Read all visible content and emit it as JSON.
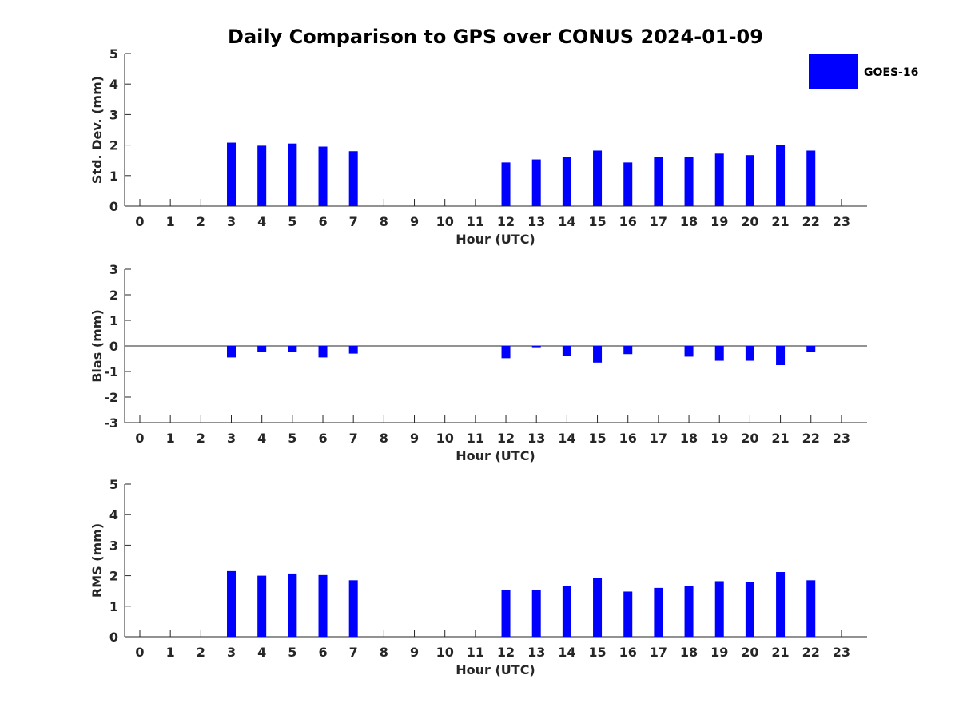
{
  "title": "Daily Comparison to GPS over CONUS 2024-01-09",
  "bar_color": "#0000ff",
  "chart_data": [
    {
      "type": "bar",
      "xlabel": "Hour (UTC)",
      "ylabel": "Std. Dev. (mm)",
      "ylim": [
        0,
        5
      ],
      "yticks": [
        0,
        1,
        2,
        3,
        4,
        5
      ],
      "categories": [
        "0",
        "1",
        "2",
        "3",
        "4",
        "5",
        "6",
        "7",
        "8",
        "9",
        "10",
        "11",
        "12",
        "13",
        "14",
        "15",
        "16",
        "17",
        "18",
        "19",
        "20",
        "21",
        "22",
        "23"
      ],
      "series": [
        {
          "name": "GOES-16",
          "values": [
            null,
            null,
            null,
            2.08,
            1.98,
            2.05,
            1.95,
            1.8,
            null,
            null,
            null,
            null,
            1.43,
            1.53,
            1.62,
            1.82,
            1.43,
            1.62,
            1.62,
            1.72,
            1.67,
            2.0,
            1.82,
            null
          ]
        }
      ],
      "legend": "top-right",
      "grid": false
    },
    {
      "type": "bar",
      "xlabel": "Hour (UTC)",
      "ylabel": "Bias (mm)",
      "ylim": [
        -3,
        3
      ],
      "yticks": [
        -3,
        -2,
        -1,
        0,
        1,
        2,
        3
      ],
      "categories": [
        "0",
        "1",
        "2",
        "3",
        "4",
        "5",
        "6",
        "7",
        "8",
        "9",
        "10",
        "11",
        "12",
        "13",
        "14",
        "15",
        "16",
        "17",
        "18",
        "19",
        "20",
        "21",
        "22",
        "23"
      ],
      "series": [
        {
          "name": "GOES-16",
          "values": [
            null,
            null,
            null,
            -0.45,
            -0.22,
            -0.22,
            -0.45,
            -0.3,
            null,
            null,
            null,
            null,
            -0.48,
            -0.05,
            -0.38,
            -0.65,
            -0.32,
            null,
            -0.42,
            -0.58,
            -0.58,
            -0.75,
            -0.25,
            null
          ]
        }
      ],
      "grid": false
    },
    {
      "type": "bar",
      "xlabel": "Hour (UTC)",
      "ylabel": "RMS (mm)",
      "ylim": [
        0,
        5
      ],
      "yticks": [
        0,
        1,
        2,
        3,
        4,
        5
      ],
      "categories": [
        "0",
        "1",
        "2",
        "3",
        "4",
        "5",
        "6",
        "7",
        "8",
        "9",
        "10",
        "11",
        "12",
        "13",
        "14",
        "15",
        "16",
        "17",
        "18",
        "19",
        "20",
        "21",
        "22",
        "23"
      ],
      "series": [
        {
          "name": "GOES-16",
          "values": [
            null,
            null,
            null,
            2.15,
            2.0,
            2.07,
            2.02,
            1.85,
            null,
            null,
            null,
            null,
            1.53,
            1.53,
            1.65,
            1.92,
            1.48,
            1.6,
            1.65,
            1.82,
            1.78,
            2.12,
            1.85,
            null
          ]
        }
      ],
      "grid": false
    }
  ]
}
